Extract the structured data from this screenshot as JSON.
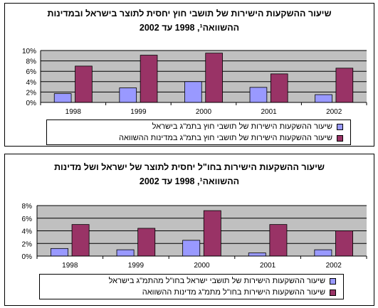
{
  "chart_data": [
    {
      "type": "bar",
      "title": [
        "שיעור ההשקעות הישירות של תושבי חוץ יחסית לתוצר בישראל ובמדינות",
        "ההשוואה¹, 1998 עד 2002"
      ],
      "categories": [
        "1998",
        "1999",
        "2000",
        "2001",
        "2002"
      ],
      "yticks": [
        "10%",
        "8%",
        "6%",
        "4%",
        "2%",
        "0%"
      ],
      "ylim": [
        0,
        10
      ],
      "grid": true,
      "legend_position": "bottom",
      "series": [
        {
          "name": "שיעור ההשקעות הישירות של תושבי חוץ בתמ\"ג בישראל",
          "color": "#9999ff",
          "values": [
            1.7,
            2.8,
            4.0,
            2.9,
            1.5
          ]
        },
        {
          "name": "שיעור ההשקעות הישירות של תושבי חוץ בתמ\"ג במדינות ההשוואה",
          "color": "#993366",
          "values": [
            7.0,
            9.1,
            9.5,
            5.5,
            6.6
          ]
        }
      ]
    },
    {
      "type": "bar",
      "title": [
        "שיעור ההשקעות הישירות בחו\"ל יחסית לתוצר של ישראל ושל מדינות",
        "ההשוואה¹, 1998 עד 2002"
      ],
      "categories": [
        "1998",
        "1999",
        "2000",
        "2001",
        "2002"
      ],
      "yticks": [
        "8%",
        "6%",
        "4%",
        "2%",
        "0%"
      ],
      "ylim": [
        0,
        8
      ],
      "grid": true,
      "legend_position": "bottom",
      "series": [
        {
          "name": "שיעור ההשקעות הישירות של תושבי ישראל בחו\"ל מהתמ\"ג בישראל",
          "color": "#9999ff",
          "values": [
            1.2,
            1.0,
            2.5,
            0.5,
            1.0
          ]
        },
        {
          "name": "שיעור ההשקעות הישירות בחו\"ל מתמ\"ג מדינות ההשוואה",
          "color": "#993366",
          "values": [
            5.0,
            4.4,
            7.2,
            5.0,
            4.0
          ]
        }
      ]
    }
  ],
  "colors": {
    "plot_background": "#c0c0c0",
    "axis": "#000000",
    "gridline": "#000000"
  }
}
